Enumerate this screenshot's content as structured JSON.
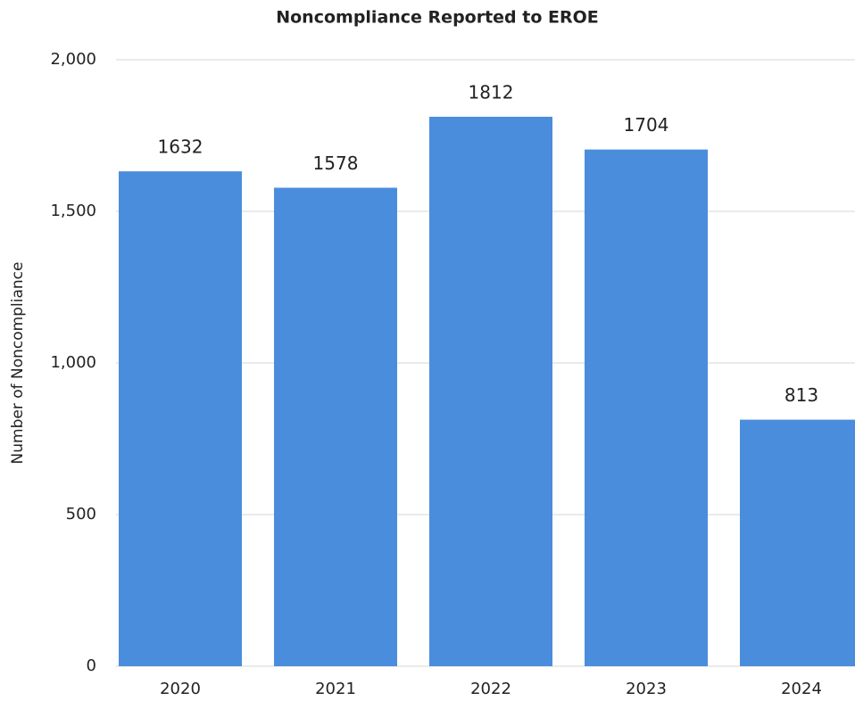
{
  "chart_data": {
    "type": "bar",
    "title": "Noncompliance Reported to EROE",
    "y_label": "Number of Noncompliance",
    "categories": [
      "2020",
      "2021",
      "2022",
      "2023",
      "2024"
    ],
    "values": [
      1632,
      1578,
      1812,
      1704,
      813
    ],
    "color": "#4a8ddc",
    "ylim": [
      0,
      2000
    ],
    "yticks": [
      0,
      500,
      {
        "value": 1000,
        "label": "1,000"
      },
      {
        "value": 1500,
        "label": "1,500"
      },
      {
        "value": 2000,
        "label": "2,000"
      }
    ],
    "grid": true
  }
}
